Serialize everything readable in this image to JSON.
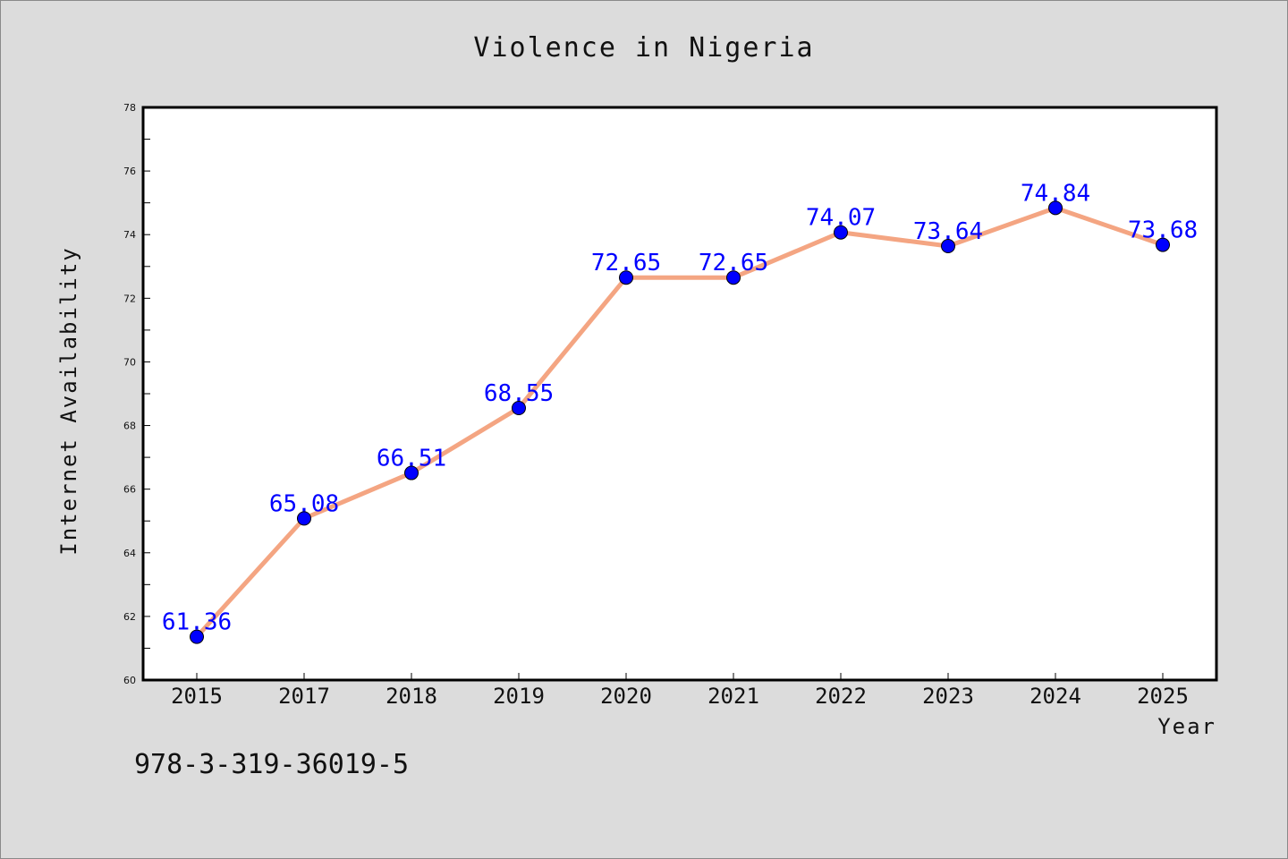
{
  "chart_data": {
    "type": "line",
    "title": "Violence in Nigeria",
    "xlabel": "Year",
    "ylabel": "Internet Availability",
    "categories": [
      "2015",
      "2017",
      "2018",
      "2019",
      "2020",
      "2021",
      "2022",
      "2023",
      "2024",
      "2025"
    ],
    "series": [
      {
        "values": [
          61.36,
          65.08,
          66.51,
          68.55,
          72.65,
          72.65,
          74.07,
          73.64,
          74.84,
          73.68
        ],
        "data_labels": [
          "61.36",
          "65.08",
          "66.51",
          "68.55",
          "72.65",
          "72.65",
          "74.07",
          "73.64",
          "74.84",
          "73.68"
        ],
        "line_color": "#f4a582",
        "marker_color": "#0000ff"
      }
    ],
    "ylim": [
      60,
      78
    ],
    "yticks": [
      "60",
      "62",
      "64",
      "66",
      "68",
      "70",
      "72",
      "74",
      "76",
      "78"
    ],
    "grid": false,
    "legend": "none"
  },
  "footnote": "978-3-319-36019-5"
}
